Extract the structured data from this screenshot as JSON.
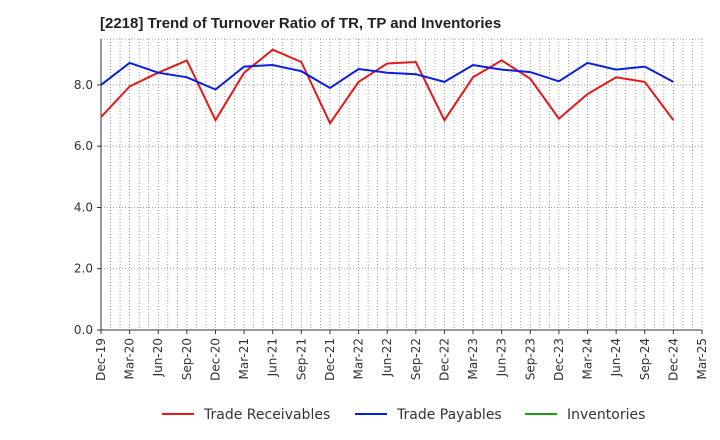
{
  "chart_data": {
    "type": "line",
    "title": "[2218]  Trend of Turnover Ratio of TR, TP and Inventories",
    "xlabel": "",
    "ylabel": "",
    "ylim": [
      0,
      9.5
    ],
    "yticks": [
      "0.0",
      "2.0",
      "4.0",
      "6.0",
      "8.0"
    ],
    "ytick_values": [
      0,
      2,
      4,
      6,
      8
    ],
    "x": [
      "Dec-19",
      "Jan-20",
      "Feb-20",
      "Mar-20",
      "Apr-20",
      "May-20",
      "Jun-20",
      "Jul-20",
      "Aug-20",
      "Sep-20",
      "Oct-20",
      "Nov-20",
      "Dec-20",
      "Jan-21",
      "Feb-21",
      "Mar-21",
      "Apr-21",
      "May-21",
      "Jun-21",
      "Jul-21",
      "Aug-21",
      "Sep-21",
      "Oct-21",
      "Nov-21",
      "Dec-21",
      "Jan-22",
      "Feb-22",
      "Mar-22",
      "Apr-22",
      "May-22",
      "Jun-22",
      "Jul-22",
      "Aug-22",
      "Sep-22",
      "Oct-22",
      "Nov-22",
      "Dec-22",
      "Jan-23",
      "Feb-23",
      "Mar-23",
      "Apr-23",
      "May-23",
      "Jun-23",
      "Jul-23",
      "Aug-23",
      "Sep-23",
      "Oct-23",
      "Nov-23",
      "Dec-23",
      "Jan-24",
      "Feb-24",
      "Mar-24",
      "Apr-24",
      "May-24",
      "Jun-24",
      "Jul-24",
      "Aug-24",
      "Sep-24",
      "Oct-24",
      "Nov-24",
      "Dec-24",
      "Jan-25",
      "Feb-25",
      "Mar-25"
    ],
    "xtick_labels": [
      "Dec-19",
      "Mar-20",
      "Jun-20",
      "Sep-20",
      "Dec-20",
      "Mar-21",
      "Jun-21",
      "Sep-21",
      "Dec-21",
      "Mar-22",
      "Jun-22",
      "Sep-22",
      "Dec-22",
      "Mar-23",
      "Jun-23",
      "Sep-23",
      "Dec-23",
      "Mar-24",
      "Jun-24",
      "Sep-24",
      "Dec-24",
      "Mar-25"
    ],
    "series": [
      {
        "name": "Trade Receivables",
        "color": "#e31a1c",
        "x": [
          "Dec-19",
          "Mar-20",
          "Jun-20",
          "Sep-20",
          "Dec-20",
          "Mar-21",
          "Jun-21",
          "Sep-21",
          "Dec-21",
          "Mar-22",
          "Jun-22",
          "Sep-22",
          "Dec-22",
          "Mar-23",
          "Jun-23",
          "Sep-23",
          "Dec-23",
          "Mar-24",
          "Jun-24",
          "Sep-24",
          "Dec-24"
        ],
        "values": [
          6.95,
          7.95,
          8.4,
          8.8,
          6.85,
          8.4,
          9.15,
          8.75,
          6.75,
          8.1,
          8.7,
          8.75,
          6.85,
          8.25,
          8.8,
          8.2,
          6.9,
          7.7,
          8.25,
          8.1,
          6.85
        ]
      },
      {
        "name": "Trade Payables",
        "color": "#0a1ee0",
        "x": [
          "Dec-19",
          "Mar-20",
          "Jun-20",
          "Sep-20",
          "Dec-20",
          "Mar-21",
          "Jun-21",
          "Sep-21",
          "Dec-21",
          "Mar-22",
          "Jun-22",
          "Sep-22",
          "Dec-22",
          "Mar-23",
          "Jun-23",
          "Sep-23",
          "Dec-23",
          "Mar-24",
          "Jun-24",
          "Sep-24",
          "Dec-24"
        ],
        "values": [
          8.0,
          8.72,
          8.4,
          8.25,
          7.85,
          8.6,
          8.65,
          8.45,
          7.9,
          8.52,
          8.4,
          8.35,
          8.1,
          8.65,
          8.5,
          8.42,
          8.12,
          8.72,
          8.5,
          8.6,
          8.1
        ]
      },
      {
        "name": "Inventories",
        "color": "#1a9e1a",
        "x": [],
        "values": []
      }
    ],
    "grid": true,
    "legend_position": "bottom"
  }
}
